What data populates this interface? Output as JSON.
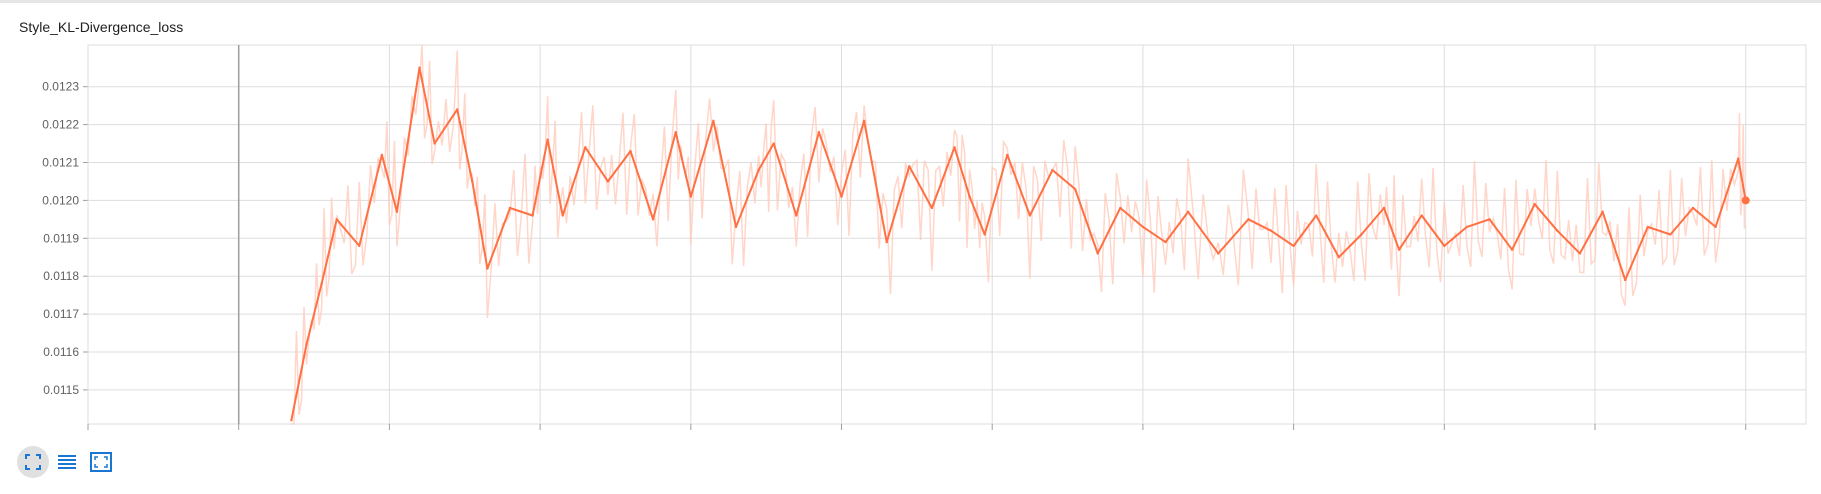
{
  "card": {
    "title": "Style_KL-Divergence_loss"
  },
  "controls": [
    {
      "icon": "fit-domain-icon",
      "active": true
    },
    {
      "icon": "toggle-log-scale-icon",
      "active": false
    },
    {
      "icon": "expand-chart-icon",
      "active": false
    }
  ],
  "colors": {
    "smoothed": "#ff7043",
    "raw": "#ffccbc",
    "grid": "#dddddd",
    "accent": "#1976d2"
  },
  "chart_data": {
    "type": "line",
    "title": "Style_KL-Divergence_loss",
    "xlabel": "",
    "ylabel": "",
    "ylim": [
      0.01141,
      0.01241
    ],
    "xlim": [
      0,
      11
    ],
    "yticks": [
      "0.0115",
      "0.0116",
      "0.0117",
      "0.0118",
      "0.0119",
      "0.0120",
      "0.0121",
      "0.0122",
      "0.0123"
    ],
    "grid": true,
    "legend": "none",
    "series": [
      {
        "role": "smoothed",
        "x": [
          1.35,
          1.45,
          1.55,
          1.65,
          1.8,
          1.95,
          2.05,
          2.2,
          2.3,
          2.45,
          2.55,
          2.65,
          2.8,
          2.95,
          3.05,
          3.15,
          3.3,
          3.45,
          3.6,
          3.75,
          3.9,
          4.0,
          4.15,
          4.3,
          4.45,
          4.55,
          4.7,
          4.85,
          5.0,
          5.15,
          5.3,
          5.45,
          5.6,
          5.75,
          5.85,
          5.95,
          6.1,
          6.25,
          6.4,
          6.55,
          6.7,
          6.85,
          7.0,
          7.15,
          7.3,
          7.5,
          7.7,
          7.85,
          8.0,
          8.15,
          8.3,
          8.45,
          8.6,
          8.7,
          8.85,
          9.0,
          9.15,
          9.3,
          9.45,
          9.6,
          9.75,
          9.9,
          10.05,
          10.2,
          10.35,
          10.5,
          10.65,
          10.8,
          10.95,
          11.0
        ],
        "y": [
          0.01142,
          0.01162,
          0.01178,
          0.01195,
          0.01188,
          0.01212,
          0.01197,
          0.01235,
          0.01215,
          0.01224,
          0.01205,
          0.01182,
          0.01198,
          0.01196,
          0.01216,
          0.01196,
          0.01214,
          0.01205,
          0.01213,
          0.01195,
          0.01218,
          0.01201,
          0.01221,
          0.01193,
          0.01208,
          0.01215,
          0.01196,
          0.01218,
          0.01201,
          0.01221,
          0.01189,
          0.01209,
          0.01198,
          0.01214,
          0.01201,
          0.01191,
          0.01212,
          0.01196,
          0.01208,
          0.01203,
          0.01186,
          0.01198,
          0.01193,
          0.01189,
          0.01197,
          0.01186,
          0.01195,
          0.01192,
          0.01188,
          0.01196,
          0.01185,
          0.01191,
          0.01198,
          0.01187,
          0.01196,
          0.01188,
          0.01193,
          0.01195,
          0.01187,
          0.01199,
          0.01192,
          0.01186,
          0.01197,
          0.01179,
          0.01193,
          0.01191,
          0.01198,
          0.01193,
          0.01211,
          0.012
        ]
      }
    ]
  }
}
